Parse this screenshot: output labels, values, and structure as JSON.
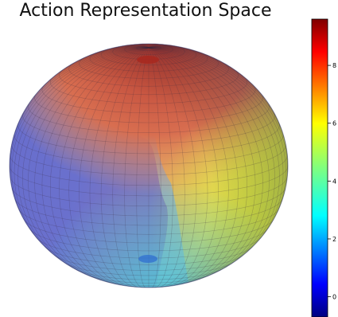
{
  "chart_data": {
    "type": "surface",
    "title": "Action Representation Space",
    "colorbar": {
      "colormap": "jet",
      "range": [
        -0.7,
        9.6
      ],
      "ticks": [
        0,
        2,
        4,
        6,
        8
      ],
      "placement": "right"
    },
    "surface": {
      "shape": "sphere",
      "wireframe": true,
      "value_by_region": [
        {
          "region": "top pole",
          "value": 9.2
        },
        {
          "region": "upper right",
          "value": 8.3
        },
        {
          "region": "middle right",
          "value": 6.8
        },
        {
          "region": "lower right",
          "value": 5.2
        },
        {
          "region": "bottom front",
          "value": 3.0
        },
        {
          "region": "bottom pole",
          "value": 1.5
        },
        {
          "region": "left hemisphere",
          "value": 0.6
        }
      ]
    }
  }
}
